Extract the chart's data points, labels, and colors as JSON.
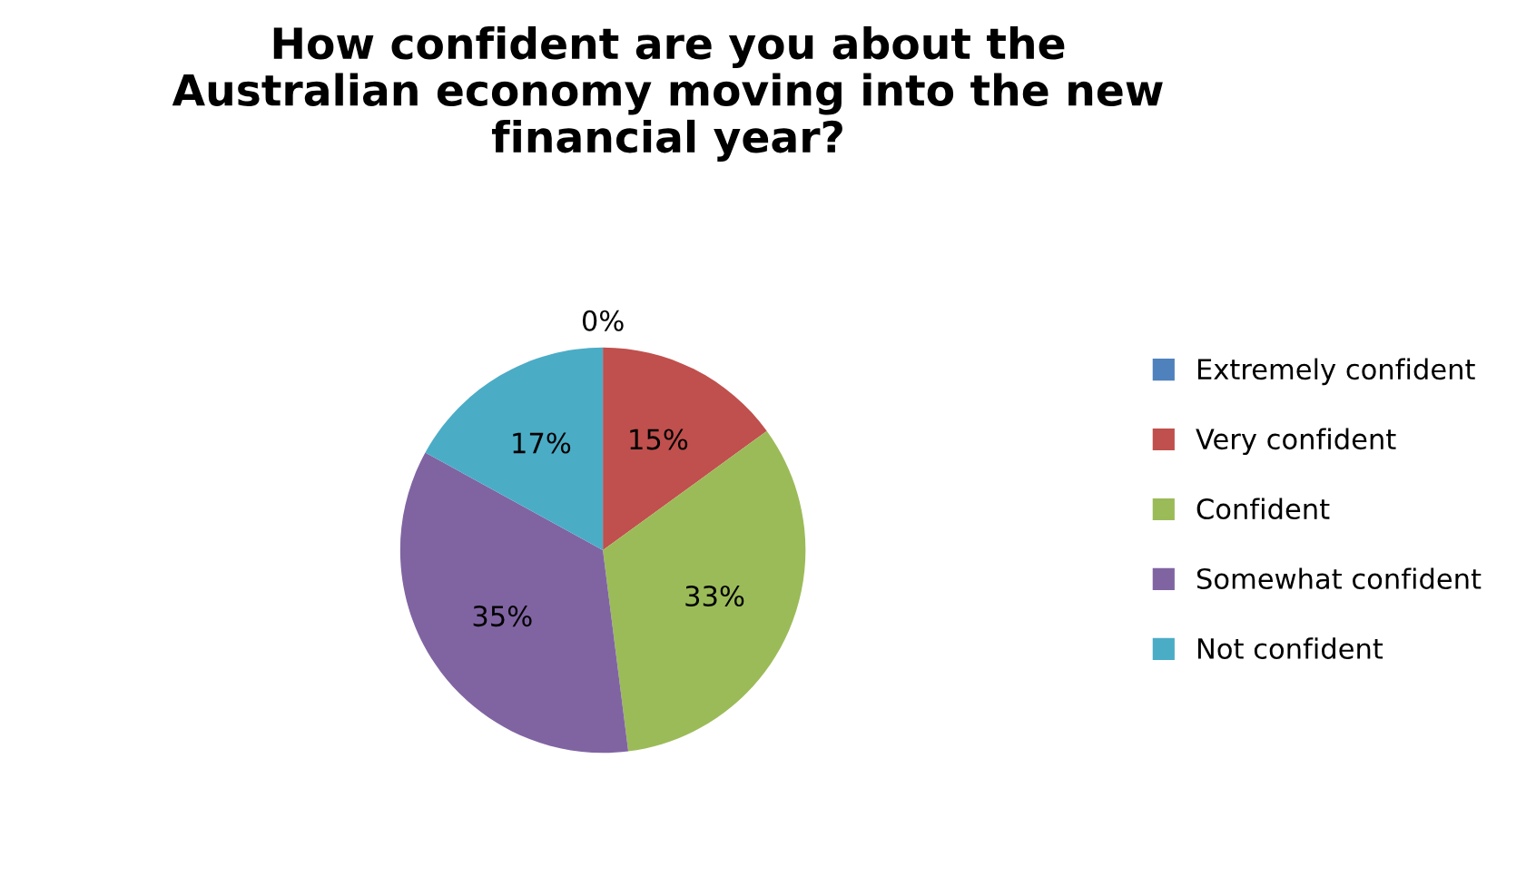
{
  "chart_data": {
    "type": "pie",
    "title": "How confident are you about the\nAustralian economy moving into the new\nfinancial year?",
    "categories": [
      "Extremely confident",
      "Very confident",
      "Confident",
      "Somewhat confident",
      "Not confident"
    ],
    "values": [
      0,
      15,
      33,
      35,
      17
    ],
    "colors": [
      "#4f81bd",
      "#c0504d",
      "#9bbb59",
      "#8064a2",
      "#4bacc6"
    ],
    "value_labels": [
      "0%",
      "15%",
      "33%",
      "35%",
      "17%"
    ],
    "legend": "right"
  }
}
